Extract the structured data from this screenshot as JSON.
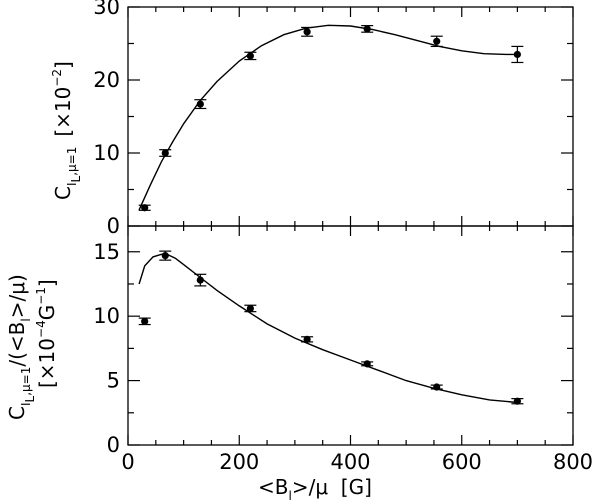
{
  "chart_data": [
    {
      "type": "scatter",
      "panel": "top",
      "ylabel_main": "C",
      "ylabel_sub": "I",
      "ylabel_sub2": "L",
      "ylabel_mu": ",μ=1",
      "ylabel_units_prefix": "[×10",
      "ylabel_units_exp": "−2",
      "ylabel_units_suffix": "]",
      "xlim": [
        0,
        800
      ],
      "ylim": [
        0,
        30
      ],
      "yticks": [
        "0",
        "10",
        "20",
        "30"
      ],
      "y_minor_step": 5,
      "series": [
        {
          "kind": "points",
          "x": [
            30,
            67,
            130,
            220,
            322,
            430,
            555,
            700
          ],
          "y": [
            2.5,
            10.0,
            16.7,
            23.3,
            26.6,
            27.0,
            25.3,
            23.5
          ],
          "err": [
            0.35,
            0.45,
            0.6,
            0.5,
            0.6,
            0.45,
            0.7,
            1.1
          ]
        },
        {
          "kind": "fit",
          "x": [
            20,
            40,
            60,
            80,
            100,
            130,
            160,
            200,
            240,
            280,
            320,
            360,
            400,
            440,
            480,
            520,
            560,
            600,
            640,
            680,
            700
          ],
          "y": [
            2.2,
            5.6,
            8.8,
            11.5,
            14.0,
            17.2,
            19.8,
            22.6,
            24.7,
            26.2,
            27.1,
            27.5,
            27.4,
            26.9,
            26.2,
            25.4,
            24.6,
            24.0,
            23.6,
            23.5,
            23.5
          ]
        }
      ]
    },
    {
      "type": "scatter",
      "panel": "bottom",
      "ylabel_line1_main": "C",
      "ylabel_line1_sub": "I",
      "ylabel_line1_sub2": "L",
      "ylabel_line1_mu": ",μ=1",
      "ylabel_line1_tail": "/(<B",
      "ylabel_line1_sub3": "l",
      "ylabel_line1_end": ">/μ)",
      "ylabel_line2_prefix": "[×10",
      "ylabel_line2_exp1": "−4",
      "ylabel_line2_mid": "G",
      "ylabel_line2_exp2": "−1",
      "ylabel_line2_suffix": "]",
      "xlabel_prefix": "<B",
      "xlabel_sub": "l",
      "xlabel_suffix": ">/μ  [G]",
      "xlim": [
        0,
        800
      ],
      "ylim": [
        0,
        17
      ],
      "xticks": [
        "0",
        "200",
        "400",
        "600",
        "800"
      ],
      "yticks": [
        "0",
        "5",
        "10",
        "15"
      ],
      "y_minor_step": 2.5,
      "series": [
        {
          "kind": "points",
          "x": [
            30,
            67,
            130,
            220,
            322,
            430,
            555,
            700
          ],
          "y": [
            9.6,
            14.7,
            12.8,
            10.6,
            8.2,
            6.3,
            4.5,
            3.4
          ],
          "err": [
            0.25,
            0.35,
            0.45,
            0.25,
            0.2,
            0.15,
            0.15,
            0.2
          ]
        },
        {
          "kind": "fit",
          "x": [
            20,
            30,
            45,
            60,
            70,
            85,
            100,
            130,
            160,
            200,
            250,
            300,
            350,
            400,
            450,
            500,
            550,
            600,
            650,
            700
          ],
          "y": [
            12.5,
            13.9,
            14.6,
            14.8,
            14.8,
            14.5,
            14.0,
            13.0,
            12.0,
            10.8,
            9.4,
            8.3,
            7.4,
            6.6,
            5.8,
            5.0,
            4.4,
            3.9,
            3.5,
            3.3
          ]
        }
      ]
    }
  ]
}
